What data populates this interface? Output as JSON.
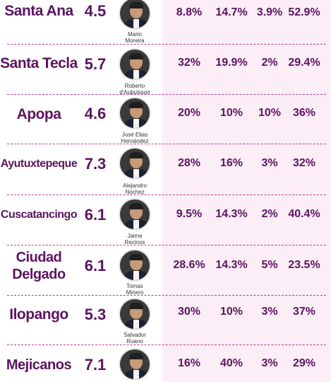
{
  "rows": [
    {
      "city": "Santa Ana",
      "score": "4.5",
      "name_line1": "Mario",
      "name_line2": "Moreira",
      "p1": "8.8%",
      "p2": "14.7%",
      "p3": "3.9%",
      "p4": "52.9%"
    },
    {
      "city": "Santa Tecla",
      "score": "5.7",
      "name_line1": "Roberto",
      "name_line2": "d'Aubuisson",
      "p1": "32%",
      "p2": "19.9%",
      "p3": "2%",
      "p4": "29.4%"
    },
    {
      "city": "Apopa",
      "score": "4.6",
      "name_line1": "José Elias",
      "name_line2": "Hernández",
      "p1": "20%",
      "p2": "10%",
      "p3": "10%",
      "p4": "36%"
    },
    {
      "city": "Ayutuxtepeque",
      "score": "7.3",
      "name_line1": "Alejandro",
      "name_line2": "Nochez",
      "p1": "28%",
      "p2": "16%",
      "p3": "3%",
      "p4": "32%"
    },
    {
      "city": "Cuscatancingo",
      "score": "6.1",
      "name_line1": "Jaime",
      "name_line2": "Recinos",
      "p1": "9.5%",
      "p2": "14.3%",
      "p3": "2%",
      "p4": "40.4%"
    },
    {
      "city_line1": "Ciudad",
      "city_line2": "Delgado",
      "score": "6.1",
      "name_line1": "Tomas",
      "name_line2": "Minero",
      "p1": "28.6%",
      "p2": "14.3%",
      "p3": "5%",
      "p4": "23.5%"
    },
    {
      "city": "Ilopango",
      "score": "5.3",
      "name_line1": "Salvador",
      "name_line2": "Ruano",
      "p1": "30%",
      "p2": "10%",
      "p3": "3%",
      "p4": "37%"
    },
    {
      "city": "Mejicanos",
      "score": "7.1",
      "name_line1": "",
      "name_line2": "",
      "p1": "16%",
      "p2": "40%",
      "p3": "3%",
      "p4": "29%"
    }
  ]
}
